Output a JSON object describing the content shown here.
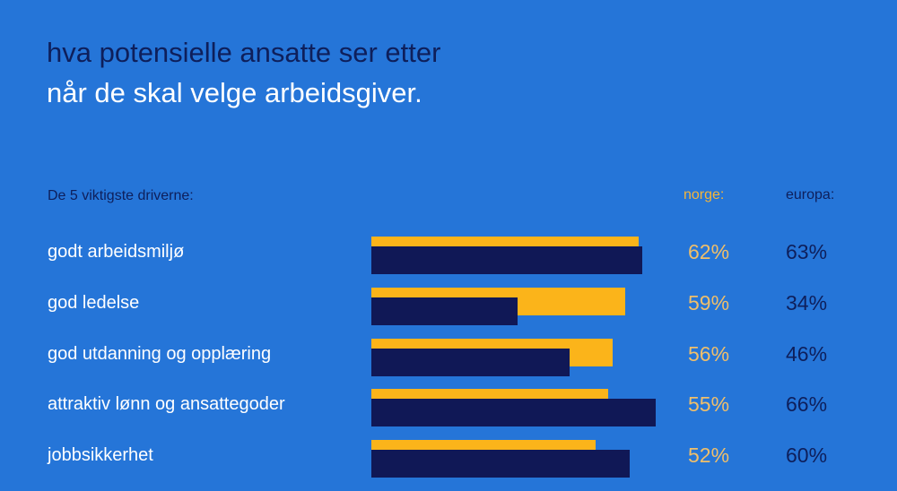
{
  "title_line1": "hva potensielle ansatte ser etter",
  "title_line2": "når de skal velge arbeidsgiver.",
  "colors": {
    "background": "#2575d8",
    "norge": "#fbb41a",
    "europa": "#101856"
  },
  "chart_data": {
    "type": "bar",
    "orientation": "horizontal",
    "subtitle": "De 5 viktigste driverne:",
    "categories": [
      "godt arbeidsmiljø",
      "god ledelse",
      "god utdanning og opplæring",
      "attraktiv lønn og ansattegoder",
      "jobbsikkerhet"
    ],
    "series": [
      {
        "name": "norge:",
        "values": [
          62,
          59,
          56,
          55,
          52
        ],
        "labels": [
          "62%",
          "59%",
          "56%",
          "55%",
          "52%"
        ]
      },
      {
        "name": "europa:",
        "values": [
          63,
          34,
          46,
          66,
          60
        ],
        "labels": [
          "63%",
          "34%",
          "46%",
          "66%",
          "60%"
        ]
      }
    ],
    "unit": "%",
    "grid": false
  }
}
